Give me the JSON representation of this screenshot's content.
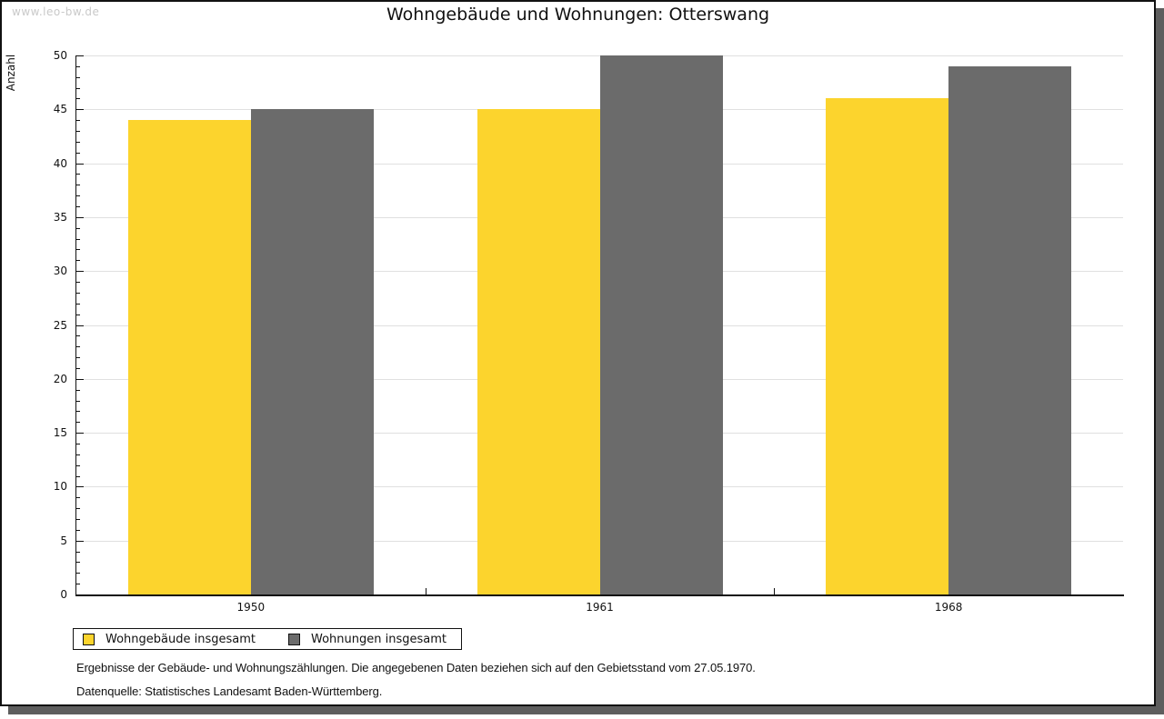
{
  "watermark": "www.leo-bw.de",
  "title": "Wohngebäude und Wohnungen: Otterswang",
  "chart_data": {
    "type": "bar",
    "title": "Wohngebäude und Wohnungen: Otterswang",
    "categories": [
      "1950",
      "1961",
      "1968"
    ],
    "series": [
      {
        "name": "Wohngebäude insgesamt",
        "color": "#fcd42d",
        "values": [
          44,
          45,
          46
        ]
      },
      {
        "name": "Wohnungen insgesamt",
        "color": "#6b6b6b",
        "values": [
          45,
          50,
          49
        ]
      }
    ],
    "xlabel": "",
    "ylabel": "Anzahl",
    "ylim": [
      0,
      50
    ],
    "ytick_step": 5,
    "minor_tick_step": 1,
    "grid": true,
    "legend_position": "bottom-left-outside"
  },
  "footer": {
    "line1": "Ergebnisse der Gebäude- und Wohnungszählungen. Die angegebenen Daten beziehen sich auf den Gebietsstand vom 27.05.1970.",
    "line2": "Datenquelle: Statistisches Landesamt Baden-Württemberg."
  },
  "colors": {
    "bar_yellow": "#fcd42d",
    "bar_gray": "#6b6b6b",
    "gridline": "#e0e0e0",
    "watermark_text": "#c9c9c9",
    "panel_shadow": "#5e5e5e"
  }
}
